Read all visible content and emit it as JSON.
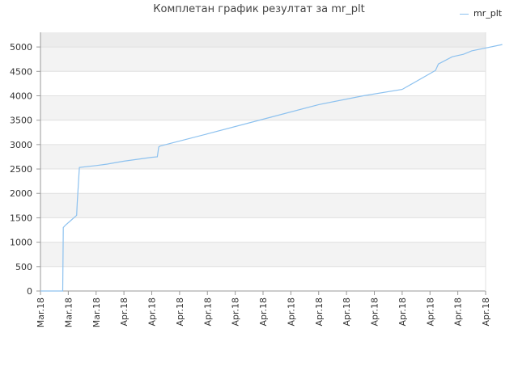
{
  "chart_data": {
    "type": "line",
    "title": "Комплетан график резултат за mr_plt",
    "xlabel": "",
    "ylabel": "",
    "ylim": [
      0,
      5300
    ],
    "y_ticks": [
      0,
      500,
      1000,
      1500,
      2000,
      2500,
      3000,
      3500,
      4000,
      4500,
      5000
    ],
    "x_tick_labels": [
      "Mar.18",
      "Mar.18",
      "Mar.18",
      "Apr.18",
      "Apr.18",
      "Apr.18",
      "Apr.18",
      "Apr.18",
      "Apr.18",
      "Apr.18",
      "Apr.18",
      "Apr.18",
      "Apr.18",
      "Apr.18",
      "Apr.18",
      "Apr.18",
      "Apr.18"
    ],
    "grid": "horizontal",
    "legend_position": "top-right",
    "series": [
      {
        "name": "mr_plt",
        "color": "#8cc1ef",
        "x": [
          0.0,
          0.5,
          0.8,
          0.82,
          0.9,
          1.1,
          1.3,
          1.32,
          1.38,
          1.4,
          2.0,
          2.4,
          2.5,
          3.0,
          3.5,
          4.0,
          4.2,
          4.25,
          4.3,
          6.0,
          8.0,
          10.0,
          11.6,
          13.0,
          14.2,
          14.3,
          14.8,
          15.2,
          15.5,
          16.6
        ],
        "y": [
          0,
          0,
          0,
          1300,
          1350,
          1450,
          1550,
          1800,
          2350,
          2530,
          2570,
          2600,
          2610,
          2660,
          2700,
          2740,
          2750,
          2950,
          2970,
          3220,
          3520,
          3820,
          4000,
          4130,
          4520,
          4650,
          4800,
          4850,
          4920,
          5050
        ]
      }
    ]
  }
}
